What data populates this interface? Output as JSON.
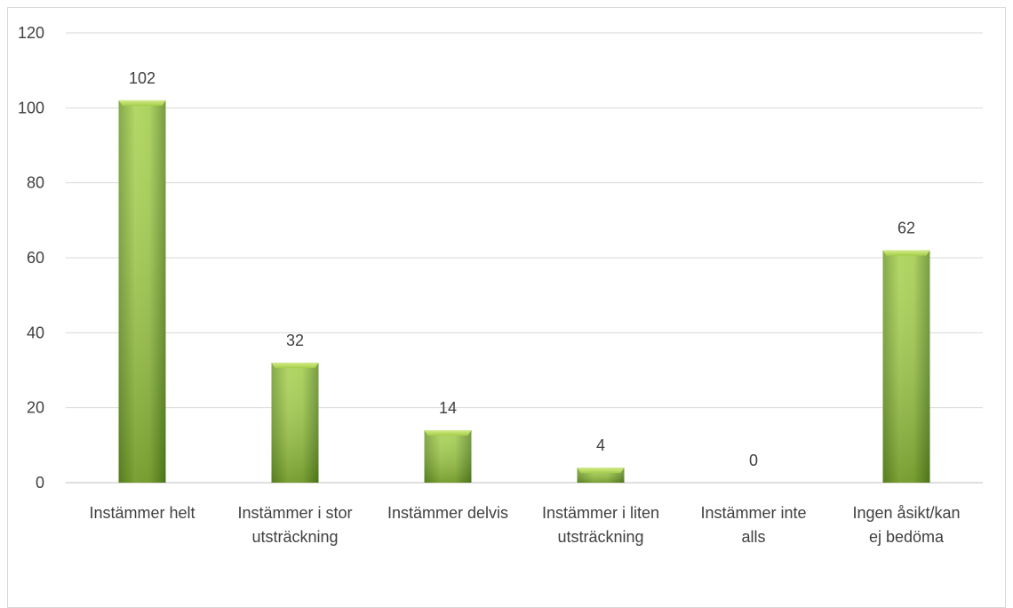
{
  "chart_data": {
    "type": "bar",
    "categories": [
      [
        "Instämmer helt"
      ],
      [
        "Instämmer i stor",
        "utsträckning"
      ],
      [
        "Instämmer delvis"
      ],
      [
        "Instämmer i liten",
        "utsträckning"
      ],
      [
        "Instämmer inte",
        "alls"
      ],
      [
        "Ingen åsikt/kan",
        "ej bedöma"
      ]
    ],
    "values": [
      102,
      32,
      14,
      4,
      0,
      62
    ],
    "ylim": [
      0,
      120
    ],
    "yticks": [
      0,
      20,
      40,
      60,
      80,
      100,
      120
    ],
    "grid": true,
    "legend": "none",
    "colors": {
      "bar_light": "#b5d85a",
      "bar_mid": "#8fbd3a",
      "bar_dark": "#5f8a22",
      "grid": "#d9d9d9",
      "text": "#404040"
    }
  }
}
